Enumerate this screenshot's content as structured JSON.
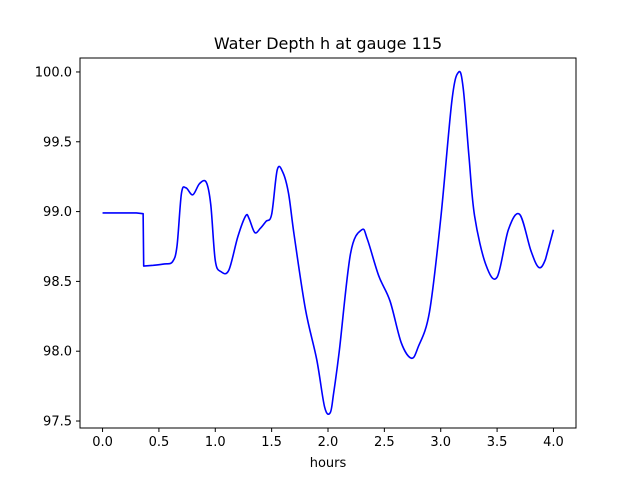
{
  "chart_data": {
    "type": "line",
    "title": "Water Depth h at gauge 115",
    "xlabel": "hours",
    "ylabel": "",
    "xlim": [
      -0.2,
      4.2
    ],
    "ylim": [
      97.45,
      100.1
    ],
    "xticks": [
      0.0,
      0.5,
      1.0,
      1.5,
      2.0,
      2.5,
      3.0,
      3.5,
      4.0
    ],
    "xtick_labels": [
      "0.0",
      "0.5",
      "1.0",
      "1.5",
      "2.0",
      "2.5",
      "3.0",
      "3.5",
      "4.0"
    ],
    "yticks": [
      97.5,
      98.0,
      98.5,
      99.0,
      99.5,
      100.0
    ],
    "ytick_labels": [
      "97.5",
      "98.0",
      "98.5",
      "99.0",
      "99.5",
      "100.0"
    ],
    "grid": false,
    "series": [
      {
        "color": "#0000ff",
        "x": [
          0.0,
          0.1,
          0.2,
          0.3,
          0.36,
          0.365,
          0.45,
          0.55,
          0.62,
          0.66,
          0.7,
          0.74,
          0.8,
          0.86,
          0.92,
          0.96,
          1.0,
          1.05,
          1.12,
          1.2,
          1.27,
          1.3,
          1.35,
          1.4,
          1.45,
          1.5,
          1.55,
          1.6,
          1.65,
          1.7,
          1.8,
          1.9,
          1.97,
          2.02,
          2.05,
          2.1,
          2.2,
          2.3,
          2.35,
          2.45,
          2.55,
          2.65,
          2.74,
          2.8,
          2.9,
          3.0,
          3.1,
          3.16,
          3.2,
          3.25,
          3.3,
          3.4,
          3.5,
          3.6,
          3.7,
          3.8,
          3.87,
          3.93,
          4.0
        ],
        "y": [
          98.99,
          98.99,
          98.99,
          98.99,
          98.985,
          98.61,
          98.615,
          98.625,
          98.64,
          98.75,
          99.13,
          99.17,
          99.12,
          99.2,
          99.21,
          99.05,
          98.65,
          98.57,
          98.58,
          98.82,
          98.97,
          98.95,
          98.85,
          98.88,
          98.93,
          98.98,
          99.3,
          99.28,
          99.13,
          98.83,
          98.3,
          97.94,
          97.6,
          97.56,
          97.7,
          98.0,
          98.7,
          98.87,
          98.8,
          98.54,
          98.36,
          98.06,
          97.95,
          98.03,
          98.28,
          98.95,
          99.8,
          100.0,
          99.88,
          99.4,
          98.97,
          98.62,
          98.53,
          98.87,
          98.98,
          98.72,
          98.6,
          98.66,
          98.87
        ]
      }
    ]
  }
}
